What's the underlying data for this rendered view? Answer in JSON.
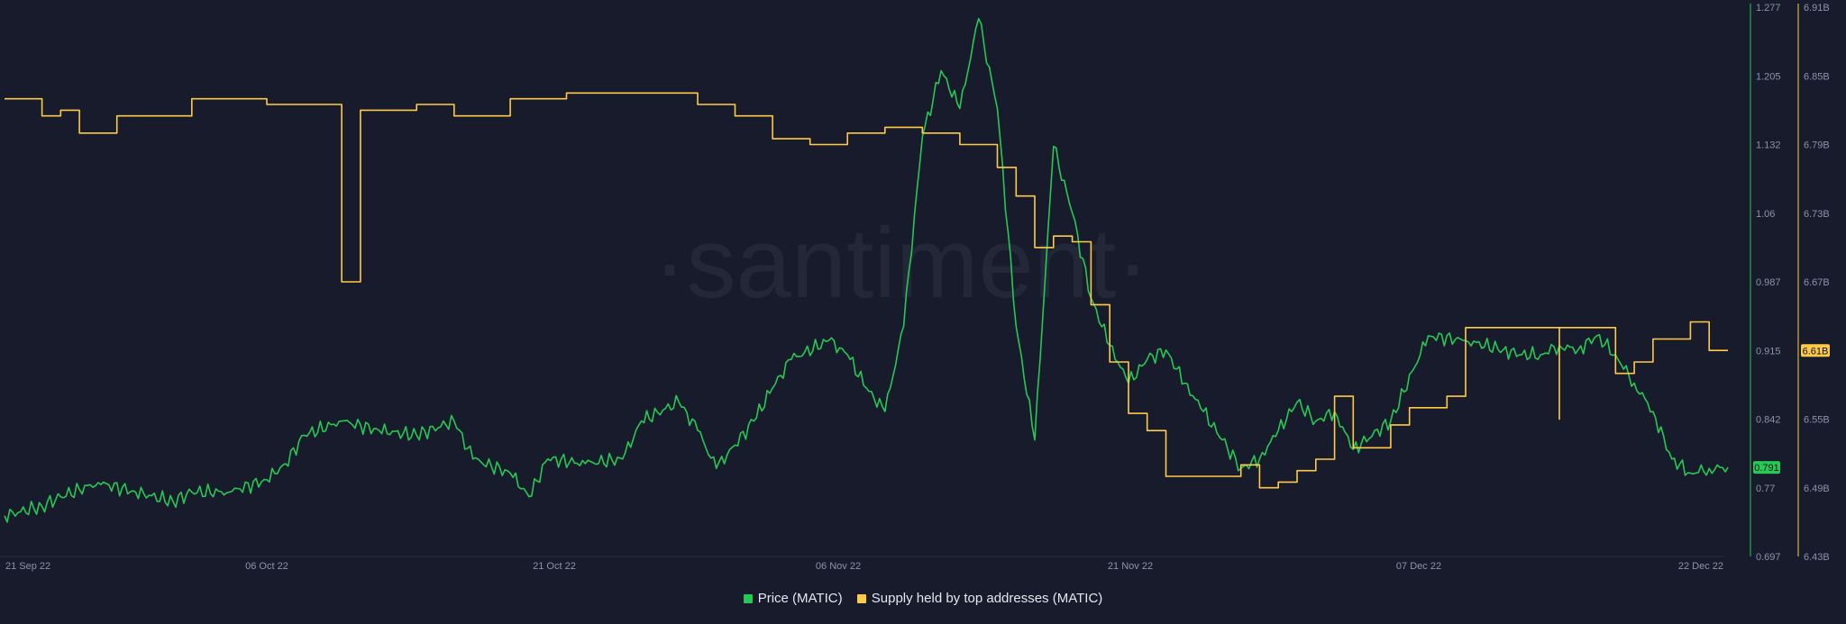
{
  "watermark": "·santiment·",
  "legend": [
    {
      "label": "Price (MATIC)",
      "color": "#26c953"
    },
    {
      "label": "Supply held by top addresses (MATIC)",
      "color": "#ffcb47"
    }
  ],
  "chart_data": {
    "type": "line",
    "x_ticks": [
      "21 Sep 22",
      "06 Oct 22",
      "21 Oct 22",
      "06 Nov 22",
      "21 Nov 22",
      "07 Dec 22",
      "22 Dec 22"
    ],
    "x_range": [
      "2022-09-21",
      "2022-12-22"
    ],
    "price_axis": {
      "ticks": [
        "1.277",
        "1.205",
        "1.132",
        "1.06",
        "0.987",
        "0.915",
        "0.842",
        "0.77",
        "0.697"
      ],
      "range": [
        0.697,
        1.277
      ],
      "current_label": "0.791"
    },
    "supply_axis": {
      "ticks": [
        "6.91B",
        "6.85B",
        "6.79B",
        "6.73B",
        "6.67B",
        "6.61B",
        "6.55B",
        "6.49B",
        "6.43B"
      ],
      "range": [
        6.43,
        6.91
      ],
      "unit": "B",
      "current_label": "6.61B"
    },
    "series": [
      {
        "name": "Price (MATIC)",
        "color": "#26c953",
        "axis": "left",
        "points": [
          [
            "2022-09-21",
            0.74
          ],
          [
            "2022-09-23",
            0.75
          ],
          [
            "2022-09-24",
            0.76
          ],
          [
            "2022-09-26",
            0.775
          ],
          [
            "2022-09-28",
            0.765
          ],
          [
            "2022-09-30",
            0.755
          ],
          [
            "2022-10-01",
            0.765
          ],
          [
            "2022-10-03",
            0.765
          ],
          [
            "2022-10-05",
            0.778
          ],
          [
            "2022-10-06",
            0.795
          ],
          [
            "2022-10-07",
            0.825
          ],
          [
            "2022-10-09",
            0.84
          ],
          [
            "2022-10-11",
            0.83
          ],
          [
            "2022-10-13",
            0.825
          ],
          [
            "2022-10-15",
            0.84
          ],
          [
            "2022-10-16",
            0.8
          ],
          [
            "2022-10-18",
            0.785
          ],
          [
            "2022-10-19",
            0.76
          ],
          [
            "2022-10-20",
            0.8
          ],
          [
            "2022-10-22",
            0.795
          ],
          [
            "2022-10-24",
            0.8
          ],
          [
            "2022-10-25",
            0.84
          ],
          [
            "2022-10-27",
            0.86
          ],
          [
            "2022-10-28",
            0.83
          ],
          [
            "2022-10-29",
            0.79
          ],
          [
            "2022-10-31",
            0.84
          ],
          [
            "2022-11-01",
            0.875
          ],
          [
            "2022-11-02",
            0.905
          ],
          [
            "2022-11-04",
            0.925
          ],
          [
            "2022-11-05",
            0.91
          ],
          [
            "2022-11-06",
            0.875
          ],
          [
            "2022-11-07",
            0.85
          ],
          [
            "2022-11-08",
            0.94
          ],
          [
            "2022-11-09",
            1.14
          ],
          [
            "2022-11-10",
            1.21
          ],
          [
            "2022-11-11",
            1.17
          ],
          [
            "2022-11-12",
            1.265
          ],
          [
            "2022-11-13",
            1.17
          ],
          [
            "2022-11-14",
            0.94
          ],
          [
            "2022-11-15",
            0.82
          ],
          [
            "2022-11-16",
            1.13
          ],
          [
            "2022-11-17",
            1.06
          ],
          [
            "2022-11-18",
            0.97
          ],
          [
            "2022-11-19",
            0.92
          ],
          [
            "2022-11-20",
            0.88
          ],
          [
            "2022-11-21",
            0.905
          ],
          [
            "2022-11-22",
            0.915
          ],
          [
            "2022-11-23",
            0.88
          ],
          [
            "2022-11-24",
            0.85
          ],
          [
            "2022-11-25",
            0.82
          ],
          [
            "2022-11-26",
            0.79
          ],
          [
            "2022-11-27",
            0.8
          ],
          [
            "2022-11-28",
            0.83
          ],
          [
            "2022-11-29",
            0.86
          ],
          [
            "2022-11-30",
            0.84
          ],
          [
            "2022-12-01",
            0.85
          ],
          [
            "2022-12-02",
            0.81
          ],
          [
            "2022-12-04",
            0.84
          ],
          [
            "2022-12-06",
            0.93
          ],
          [
            "2022-12-08",
            0.925
          ],
          [
            "2022-12-10",
            0.915
          ],
          [
            "2022-12-11",
            0.91
          ],
          [
            "2022-12-12",
            0.91
          ],
          [
            "2022-12-13",
            0.92
          ],
          [
            "2022-12-14",
            0.915
          ],
          [
            "2022-12-15",
            0.93
          ],
          [
            "2022-12-16",
            0.91
          ],
          [
            "2022-12-17",
            0.88
          ],
          [
            "2022-12-18",
            0.85
          ],
          [
            "2022-12-19",
            0.8
          ],
          [
            "2022-12-20",
            0.785
          ],
          [
            "2022-12-21",
            0.79
          ],
          [
            "2022-12-22",
            0.791
          ]
        ]
      },
      {
        "name": "Supply held by top addresses (MATIC)",
        "color": "#ffcb47",
        "axis": "right",
        "points": [
          [
            "2022-09-21",
            6.83
          ],
          [
            "2022-09-23",
            6.815
          ],
          [
            "2022-09-24",
            6.82
          ],
          [
            "2022-09-25",
            6.8
          ],
          [
            "2022-09-26",
            6.8
          ],
          [
            "2022-09-27",
            6.815
          ],
          [
            "2022-09-29",
            6.815
          ],
          [
            "2022-10-01",
            6.83
          ],
          [
            "2022-10-03",
            6.83
          ],
          [
            "2022-10-05",
            6.825
          ],
          [
            "2022-10-07",
            6.825
          ],
          [
            "2022-10-08",
            6.825
          ],
          [
            "2022-10-09",
            6.67
          ],
          [
            "2022-10-10",
            6.67
          ],
          [
            "2022-10-10",
            6.82
          ],
          [
            "2022-10-13",
            6.825
          ],
          [
            "2022-10-15",
            6.815
          ],
          [
            "2022-10-18",
            6.83
          ],
          [
            "2022-10-21",
            6.835
          ],
          [
            "2022-10-27",
            6.835
          ],
          [
            "2022-10-28",
            6.825
          ],
          [
            "2022-10-30",
            6.815
          ],
          [
            "2022-11-01",
            6.795
          ],
          [
            "2022-11-03",
            6.79
          ],
          [
            "2022-11-05",
            6.8
          ],
          [
            "2022-11-07",
            6.805
          ],
          [
            "2022-11-09",
            6.8
          ],
          [
            "2022-11-11",
            6.79
          ],
          [
            "2022-11-13",
            6.77
          ],
          [
            "2022-11-14",
            6.745
          ],
          [
            "2022-11-15",
            6.7
          ],
          [
            "2022-11-16",
            6.71
          ],
          [
            "2022-11-17",
            6.705
          ],
          [
            "2022-11-18",
            6.65
          ],
          [
            "2022-11-19",
            6.6
          ],
          [
            "2022-11-20",
            6.555
          ],
          [
            "2022-11-21",
            6.54
          ],
          [
            "2022-11-22",
            6.5
          ],
          [
            "2022-11-25",
            6.5
          ],
          [
            "2022-11-26",
            6.51
          ],
          [
            "2022-11-27",
            6.49
          ],
          [
            "2022-11-28",
            6.495
          ],
          [
            "2022-11-29",
            6.505
          ],
          [
            "2022-11-30",
            6.515
          ],
          [
            "2022-12-01",
            6.57
          ],
          [
            "2022-12-02",
            6.525
          ],
          [
            "2022-12-04",
            6.545
          ],
          [
            "2022-12-05",
            6.56
          ],
          [
            "2022-12-07",
            6.57
          ],
          [
            "2022-12-08",
            6.63
          ],
          [
            "2022-12-09",
            6.63
          ],
          [
            "2022-12-13",
            6.55
          ],
          [
            "2022-12-13",
            6.63
          ],
          [
            "2022-12-15",
            6.63
          ],
          [
            "2022-12-16",
            6.59
          ],
          [
            "2022-12-17",
            6.6
          ],
          [
            "2022-12-18",
            6.62
          ],
          [
            "2022-12-20",
            6.635
          ],
          [
            "2022-12-21",
            6.61
          ],
          [
            "2022-12-22",
            6.61
          ]
        ]
      }
    ],
    "legend_position": "bottom-center",
    "grid": false
  }
}
